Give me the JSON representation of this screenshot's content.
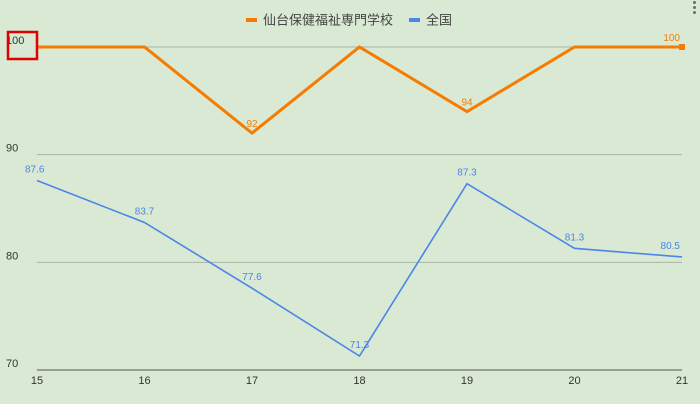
{
  "chart_data": {
    "type": "line",
    "x": [
      15,
      16,
      17,
      18,
      19,
      20,
      21
    ],
    "series": [
      {
        "name": "仙台保健福祉専門学校",
        "color": "#f57c00",
        "values": [
          100,
          100,
          92,
          100,
          94,
          100,
          100
        ],
        "labels": [
          "",
          "",
          "92",
          "",
          "94",
          "",
          "100"
        ]
      },
      {
        "name": "全国",
        "color": "#4a86e8",
        "values": [
          87.6,
          83.7,
          77.6,
          71.3,
          87.3,
          81.3,
          80.5
        ],
        "labels": [
          "87.6",
          "83.7",
          "77.6",
          "71.3",
          "87.3",
          "81.3",
          "80.5"
        ]
      }
    ],
    "y_ticks": [
      "70",
      "80",
      "90",
      "100"
    ],
    "x_ticks": [
      "15",
      "16",
      "17",
      "18",
      "19",
      "20",
      "21"
    ],
    "ylim": [
      70,
      100
    ],
    "xlim": [
      15,
      21
    ],
    "grid": true,
    "legend_position": "top",
    "highlighted_tick": "100",
    "highlight_color": "#e00000",
    "title": "",
    "xlabel": "",
    "ylabel": ""
  },
  "icons": {
    "menu": "more-vertical-icon"
  }
}
